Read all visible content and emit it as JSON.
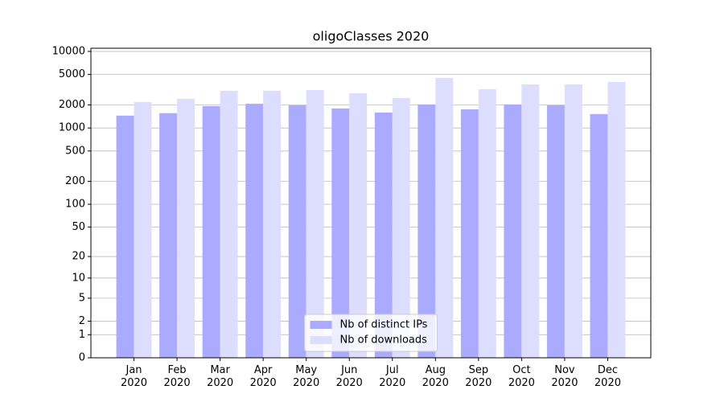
{
  "chart_data": {
    "type": "bar",
    "title": "oligoClasses 2020",
    "categories": [
      "Jan\n2020",
      "Feb\n2020",
      "Mar\n2020",
      "Apr\n2020",
      "May\n2020",
      "Jun\n2020",
      "Jul\n2020",
      "Aug\n2020",
      "Sep\n2020",
      "Oct\n2020",
      "Nov\n2020",
      "Dec\n2020"
    ],
    "series": [
      {
        "name": "Nb of distinct IPs",
        "color": "#aaaaff",
        "values": [
          1450,
          1560,
          1930,
          2070,
          1980,
          1800,
          1590,
          2030,
          1750,
          2030,
          1980,
          1520
        ]
      },
      {
        "name": "Nb of downloads",
        "color": "#ddddff",
        "values": [
          2180,
          2400,
          3060,
          3060,
          3130,
          2840,
          2460,
          4510,
          3210,
          3710,
          3710,
          3990
        ]
      }
    ],
    "yscale": "log1p",
    "ylim": [
      0,
      11000
    ],
    "yticks": [
      0,
      1,
      2,
      5,
      10,
      20,
      50,
      100,
      200,
      500,
      1000,
      2000,
      5000,
      10000
    ],
    "grid": true,
    "legend": "lower center"
  }
}
